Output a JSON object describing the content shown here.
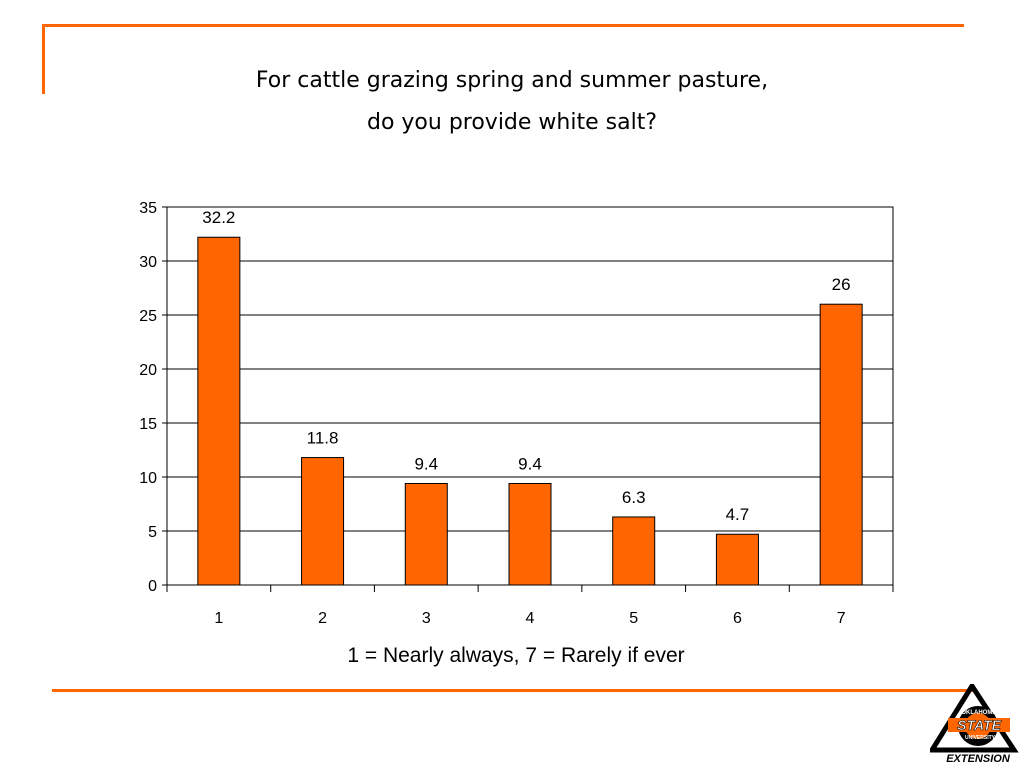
{
  "colors": {
    "accent": "#FF6600",
    "bar_fill": "#FF6600",
    "bar_stroke": "#000000",
    "logo_dark": "#000000"
  },
  "chart_data": {
    "type": "bar",
    "title_lines": [
      "For cattle grazing spring and summer pasture,",
      "do you provide white salt?"
    ],
    "categories": [
      "1",
      "2",
      "3",
      "4",
      "5",
      "6",
      "7"
    ],
    "values": [
      32.2,
      11.8,
      9.4,
      9.4,
      6.3,
      4.7,
      26
    ],
    "data_labels": [
      "32.2",
      "11.8",
      "9.4",
      "9.4",
      "6.3",
      "4.7",
      "26"
    ],
    "xlabel": "1 = Nearly always, 7 = Rarely if ever",
    "ylabel": "",
    "ylim": [
      0,
      35
    ],
    "yticks": [
      0,
      5,
      10,
      15,
      20,
      25,
      30,
      35
    ],
    "grid": true,
    "legend": "none"
  },
  "logo": {
    "icon": "oklahoma-state-university-extension-logo",
    "top_text": "OKLAHOMA",
    "main_text": "STATE",
    "sub_text": "UNIVERSITY",
    "bottom_text": "EXTENSION"
  }
}
